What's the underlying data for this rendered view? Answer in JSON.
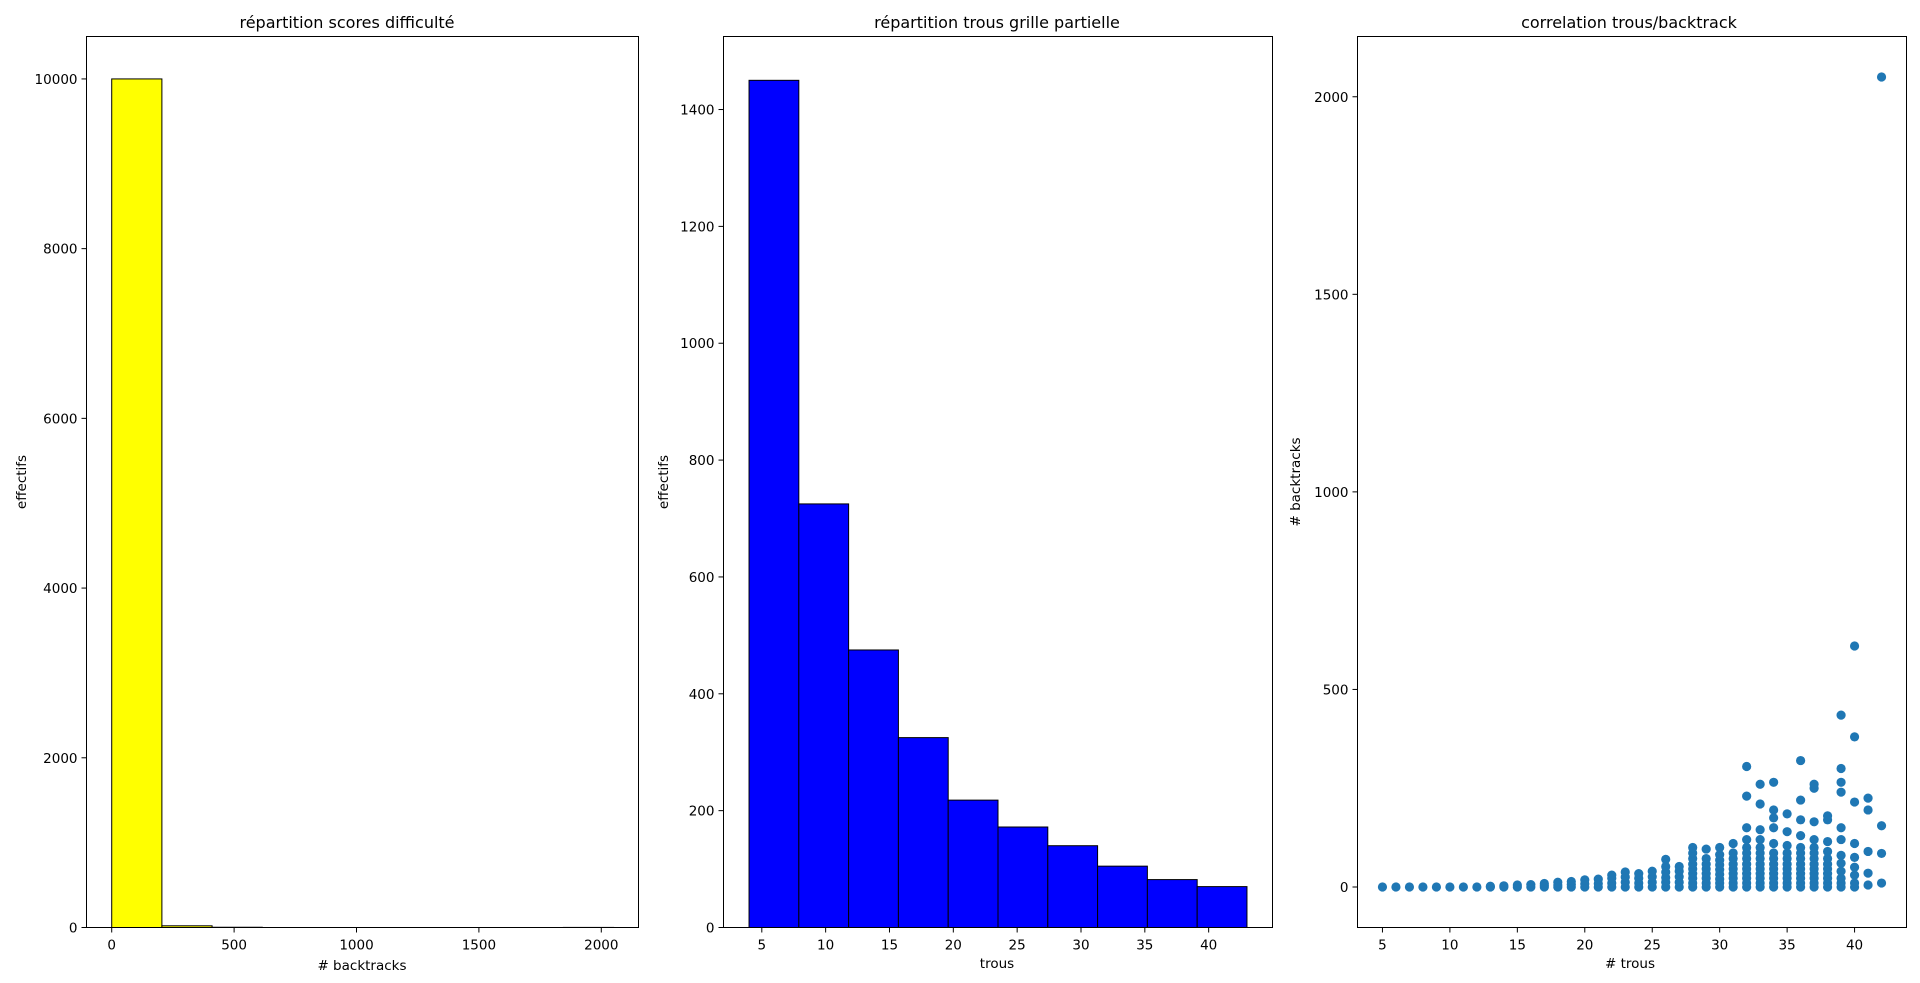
{
  "chart_data": [
    {
      "type": "bar",
      "title": "répartition scores difficulté",
      "xlabel": "# backtracks",
      "ylabel": "effectifs",
      "xlim": [
        -103,
        2152
      ],
      "ylim": [
        0,
        10500
      ],
      "xticks": [
        0,
        500,
        1000,
        1500,
        2000
      ],
      "yticks": [
        0,
        2000,
        4000,
        6000,
        8000,
        10000
      ],
      "bar_color": "#ffff00",
      "edge_color": "#000000",
      "bins": [
        {
          "start": 0,
          "end": 205,
          "count": 10000
        },
        {
          "start": 205,
          "end": 410,
          "count": 20
        },
        {
          "start": 410,
          "end": 615,
          "count": 3
        },
        {
          "start": 615,
          "end": 820,
          "count": 0
        },
        {
          "start": 820,
          "end": 1025,
          "count": 0
        },
        {
          "start": 1025,
          "end": 1230,
          "count": 0
        },
        {
          "start": 1230,
          "end": 1435,
          "count": 0
        },
        {
          "start": 1435,
          "end": 1640,
          "count": 0
        },
        {
          "start": 1640,
          "end": 1845,
          "count": 0
        },
        {
          "start": 1845,
          "end": 2050,
          "count": 1
        }
      ]
    },
    {
      "type": "bar",
      "title": "répartition trous grille partielle",
      "xlabel": "trous",
      "ylabel": "effectifs",
      "xlim": [
        2,
        45
      ],
      "ylim": [
        0,
        1525
      ],
      "xticks": [
        5,
        10,
        15,
        20,
        25,
        30,
        35,
        40
      ],
      "yticks": [
        0,
        200,
        400,
        600,
        800,
        1000,
        1200,
        1400
      ],
      "bar_color": "#0000ff",
      "edge_color": "#000000",
      "bins": [
        {
          "start": 4,
          "end": 7.9,
          "count": 1450
        },
        {
          "start": 7.9,
          "end": 11.8,
          "count": 725
        },
        {
          "start": 11.8,
          "end": 15.7,
          "count": 475
        },
        {
          "start": 15.7,
          "end": 19.6,
          "count": 325
        },
        {
          "start": 19.6,
          "end": 23.5,
          "count": 218
        },
        {
          "start": 23.5,
          "end": 27.4,
          "count": 172
        },
        {
          "start": 27.4,
          "end": 31.3,
          "count": 140
        },
        {
          "start": 31.3,
          "end": 35.2,
          "count": 105
        },
        {
          "start": 35.2,
          "end": 39.1,
          "count": 82
        },
        {
          "start": 39.1,
          "end": 43,
          "count": 70
        }
      ]
    },
    {
      "type": "scatter",
      "title": "correlation trous/backtrack",
      "xlabel": "# trous",
      "ylabel": "# backtracks",
      "xlim": [
        3.15,
        43.85
      ],
      "ylim": [
        -102.5,
        2152.5
      ],
      "xticks": [
        5,
        10,
        15,
        20,
        25,
        30,
        35,
        40
      ],
      "yticks": [
        0,
        500,
        1000,
        1500,
        2000
      ],
      "marker_color": "#1f77b4",
      "points": [
        [
          5,
          0
        ],
        [
          6,
          0
        ],
        [
          7,
          0
        ],
        [
          8,
          0
        ],
        [
          9,
          0
        ],
        [
          10,
          0
        ],
        [
          11,
          0
        ],
        [
          12,
          0
        ],
        [
          13,
          0
        ],
        [
          13,
          2
        ],
        [
          14,
          0
        ],
        [
          14,
          3
        ],
        [
          15,
          0
        ],
        [
          15,
          5
        ],
        [
          16,
          0
        ],
        [
          16,
          6
        ],
        [
          17,
          0
        ],
        [
          17,
          4
        ],
        [
          17,
          9
        ],
        [
          18,
          0
        ],
        [
          18,
          5
        ],
        [
          18,
          12
        ],
        [
          19,
          0
        ],
        [
          19,
          6
        ],
        [
          19,
          14
        ],
        [
          20,
          0
        ],
        [
          20,
          8
        ],
        [
          20,
          18
        ],
        [
          21,
          0
        ],
        [
          21,
          9
        ],
        [
          21,
          20
        ],
        [
          22,
          0
        ],
        [
          22,
          10
        ],
        [
          22,
          22
        ],
        [
          22,
          30
        ],
        [
          23,
          0
        ],
        [
          23,
          12
        ],
        [
          23,
          25
        ],
        [
          23,
          38
        ],
        [
          24,
          0
        ],
        [
          24,
          10
        ],
        [
          24,
          22
        ],
        [
          24,
          34
        ],
        [
          25,
          0
        ],
        [
          25,
          12
        ],
        [
          25,
          26
        ],
        [
          25,
          40
        ],
        [
          26,
          0
        ],
        [
          26,
          12
        ],
        [
          26,
          24
        ],
        [
          26,
          38
        ],
        [
          26,
          52
        ],
        [
          26,
          70
        ],
        [
          27,
          0
        ],
        [
          27,
          12
        ],
        [
          27,
          26
        ],
        [
          27,
          40
        ],
        [
          27,
          52
        ],
        [
          28,
          0
        ],
        [
          28,
          10
        ],
        [
          28,
          22
        ],
        [
          28,
          34
        ],
        [
          28,
          46
        ],
        [
          28,
          58
        ],
        [
          28,
          72
        ],
        [
          28,
          86
        ],
        [
          28,
          100
        ],
        [
          29,
          0
        ],
        [
          29,
          10
        ],
        [
          29,
          22
        ],
        [
          29,
          34
        ],
        [
          29,
          46
        ],
        [
          29,
          58
        ],
        [
          29,
          72
        ],
        [
          29,
          96
        ],
        [
          30,
          0
        ],
        [
          30,
          10
        ],
        [
          30,
          20
        ],
        [
          30,
          32
        ],
        [
          30,
          44
        ],
        [
          30,
          56
        ],
        [
          30,
          68
        ],
        [
          30,
          82
        ],
        [
          30,
          100
        ],
        [
          31,
          0
        ],
        [
          31,
          10
        ],
        [
          31,
          22
        ],
        [
          31,
          34
        ],
        [
          31,
          46
        ],
        [
          31,
          58
        ],
        [
          31,
          72
        ],
        [
          31,
          86
        ],
        [
          31,
          110
        ],
        [
          32,
          0
        ],
        [
          32,
          10
        ],
        [
          32,
          22
        ],
        [
          32,
          34
        ],
        [
          32,
          46
        ],
        [
          32,
          58
        ],
        [
          32,
          72
        ],
        [
          32,
          86
        ],
        [
          32,
          100
        ],
        [
          32,
          120
        ],
        [
          32,
          150
        ],
        [
          32,
          230
        ],
        [
          32,
          305
        ],
        [
          33,
          0
        ],
        [
          33,
          10
        ],
        [
          33,
          22
        ],
        [
          33,
          34
        ],
        [
          33,
          46
        ],
        [
          33,
          58
        ],
        [
          33,
          72
        ],
        [
          33,
          86
        ],
        [
          33,
          100
        ],
        [
          33,
          120
        ],
        [
          33,
          145
        ],
        [
          33,
          210
        ],
        [
          33,
          260
        ],
        [
          34,
          0
        ],
        [
          34,
          10
        ],
        [
          34,
          22
        ],
        [
          34,
          34
        ],
        [
          34,
          46
        ],
        [
          34,
          58
        ],
        [
          34,
          72
        ],
        [
          34,
          86
        ],
        [
          34,
          110
        ],
        [
          34,
          150
        ],
        [
          34,
          175
        ],
        [
          34,
          195
        ],
        [
          34,
          265
        ],
        [
          35,
          0
        ],
        [
          35,
          10
        ],
        [
          35,
          22
        ],
        [
          35,
          34
        ],
        [
          35,
          46
        ],
        [
          35,
          58
        ],
        [
          35,
          72
        ],
        [
          35,
          86
        ],
        [
          35,
          105
        ],
        [
          35,
          140
        ],
        [
          35,
          185
        ],
        [
          36,
          0
        ],
        [
          36,
          10
        ],
        [
          36,
          22
        ],
        [
          36,
          34
        ],
        [
          36,
          46
        ],
        [
          36,
          58
        ],
        [
          36,
          72
        ],
        [
          36,
          86
        ],
        [
          36,
          100
        ],
        [
          36,
          130
        ],
        [
          36,
          170
        ],
        [
          36,
          220
        ],
        [
          36,
          320
        ],
        [
          37,
          0
        ],
        [
          37,
          10
        ],
        [
          37,
          22
        ],
        [
          37,
          34
        ],
        [
          37,
          46
        ],
        [
          37,
          58
        ],
        [
          37,
          72
        ],
        [
          37,
          86
        ],
        [
          37,
          100
        ],
        [
          37,
          120
        ],
        [
          37,
          165
        ],
        [
          37,
          250
        ],
        [
          37,
          260
        ],
        [
          38,
          0
        ],
        [
          38,
          10
        ],
        [
          38,
          22
        ],
        [
          38,
          34
        ],
        [
          38,
          46
        ],
        [
          38,
          58
        ],
        [
          38,
          72
        ],
        [
          38,
          90
        ],
        [
          38,
          115
        ],
        [
          38,
          170
        ],
        [
          38,
          180
        ],
        [
          39,
          0
        ],
        [
          39,
          10
        ],
        [
          39,
          22
        ],
        [
          39,
          40
        ],
        [
          39,
          60
        ],
        [
          39,
          80
        ],
        [
          39,
          120
        ],
        [
          39,
          150
        ],
        [
          39,
          240
        ],
        [
          39,
          265
        ],
        [
          39,
          300
        ],
        [
          39,
          435
        ],
        [
          40,
          0
        ],
        [
          40,
          10
        ],
        [
          40,
          30
        ],
        [
          40,
          50
        ],
        [
          40,
          75
        ],
        [
          40,
          110
        ],
        [
          40,
          215
        ],
        [
          40,
          380
        ],
        [
          40,
          610
        ],
        [
          41,
          5
        ],
        [
          41,
          35
        ],
        [
          41,
          90
        ],
        [
          41,
          195
        ],
        [
          41,
          225
        ],
        [
          42,
          10
        ],
        [
          42,
          85
        ],
        [
          42,
          155
        ],
        [
          42,
          2050
        ]
      ]
    }
  ]
}
